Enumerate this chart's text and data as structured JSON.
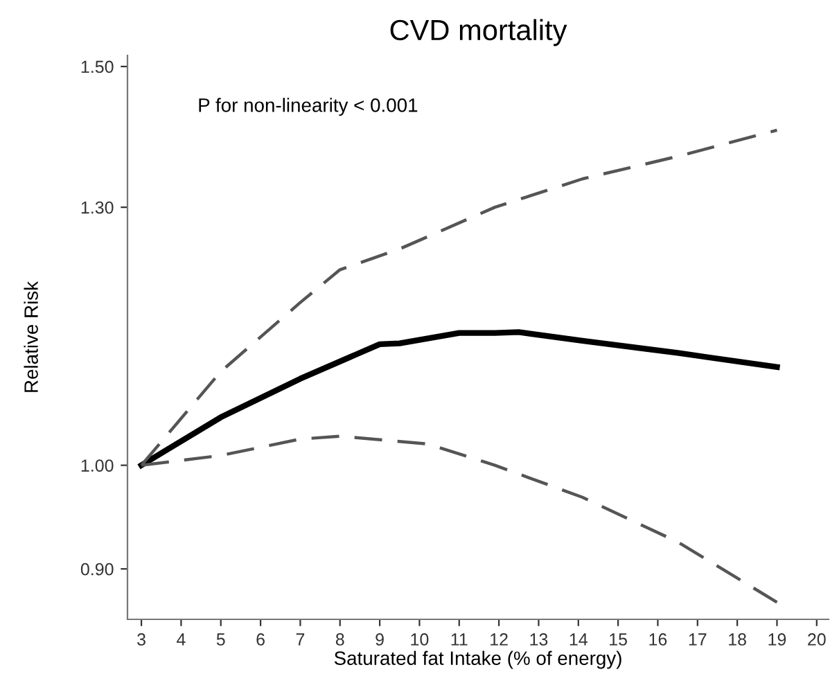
{
  "chart_data": {
    "type": "line",
    "title": "CVD mortality",
    "xlabel": "Saturated fat Intake (% of energy)",
    "ylabel": "Relative Risk",
    "annotations": [
      "P for non-linearity < 0.001"
    ],
    "series": [
      {
        "color": "#000000",
        "line_style": "solid",
        "x": [
          3,
          5,
          7,
          9,
          9.5,
          11,
          11.9,
          12.5,
          14.1,
          16.5,
          19
        ],
        "values": [
          1.0,
          1.05,
          1.092,
          1.131,
          1.132,
          1.144,
          1.144,
          1.145,
          1.135,
          1.121,
          1.105
        ]
      },
      {
        "color": "#555555",
        "line_style": "dashed",
        "x": [
          3,
          5,
          7,
          8,
          9.5,
          11.9,
          14.1,
          16.5,
          19
        ],
        "values": [
          1.0,
          1.1,
          1.18,
          1.22,
          1.246,
          1.3,
          1.338,
          1.369,
          1.406
        ]
      },
      {
        "color": "#555555",
        "line_style": "dashed",
        "x": [
          3,
          5,
          7,
          8,
          10.2,
          11.9,
          14.1,
          16.5,
          19
        ],
        "values": [
          1.0,
          1.01,
          1.027,
          1.03,
          1.022,
          1.0,
          0.968,
          0.925,
          0.87
        ]
      }
    ],
    "log": "y",
    "grid": false,
    "marker": "none",
    "xlim": [
      2.65,
      20.3
    ],
    "xticks": [
      3,
      4,
      5,
      6,
      7,
      8,
      9,
      10,
      11,
      12,
      13,
      14,
      15,
      16,
      17,
      18,
      19,
      20
    ],
    "ylim": [
      0.855,
      1.517
    ],
    "yticks": [
      {
        "value": 0.9,
        "label": "0.90"
      },
      {
        "value": 1.0,
        "label": "1.00"
      },
      {
        "value": 1.3,
        "label": "1.30"
      },
      {
        "value": 1.5,
        "label": "1.50"
      }
    ]
  }
}
